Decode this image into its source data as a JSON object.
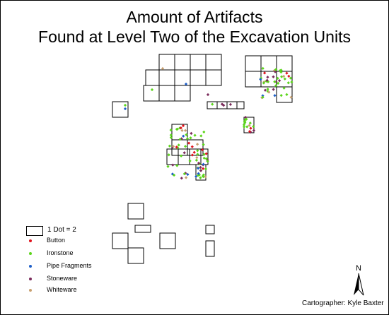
{
  "title": {
    "line1": "Amount of Artifacts",
    "line2": "Found at Level Two of the Excavation Units"
  },
  "legend": {
    "scale_label": "1 Dot = 2",
    "items": [
      {
        "label": "Button",
        "color": "#e0141e"
      },
      {
        "label": "Ironstone",
        "color": "#5cd51c"
      },
      {
        "label": "Pipe Fragments",
        "color": "#1e5fc8"
      },
      {
        "label": "Stoneware",
        "color": "#7a2a5a"
      },
      {
        "label": "Whiteware",
        "color": "#c8a070"
      }
    ]
  },
  "cartographer": "Cartographer: Kyle Baxter",
  "north_label": "N",
  "icons": {
    "north_arrow": "north-arrow-icon"
  }
}
